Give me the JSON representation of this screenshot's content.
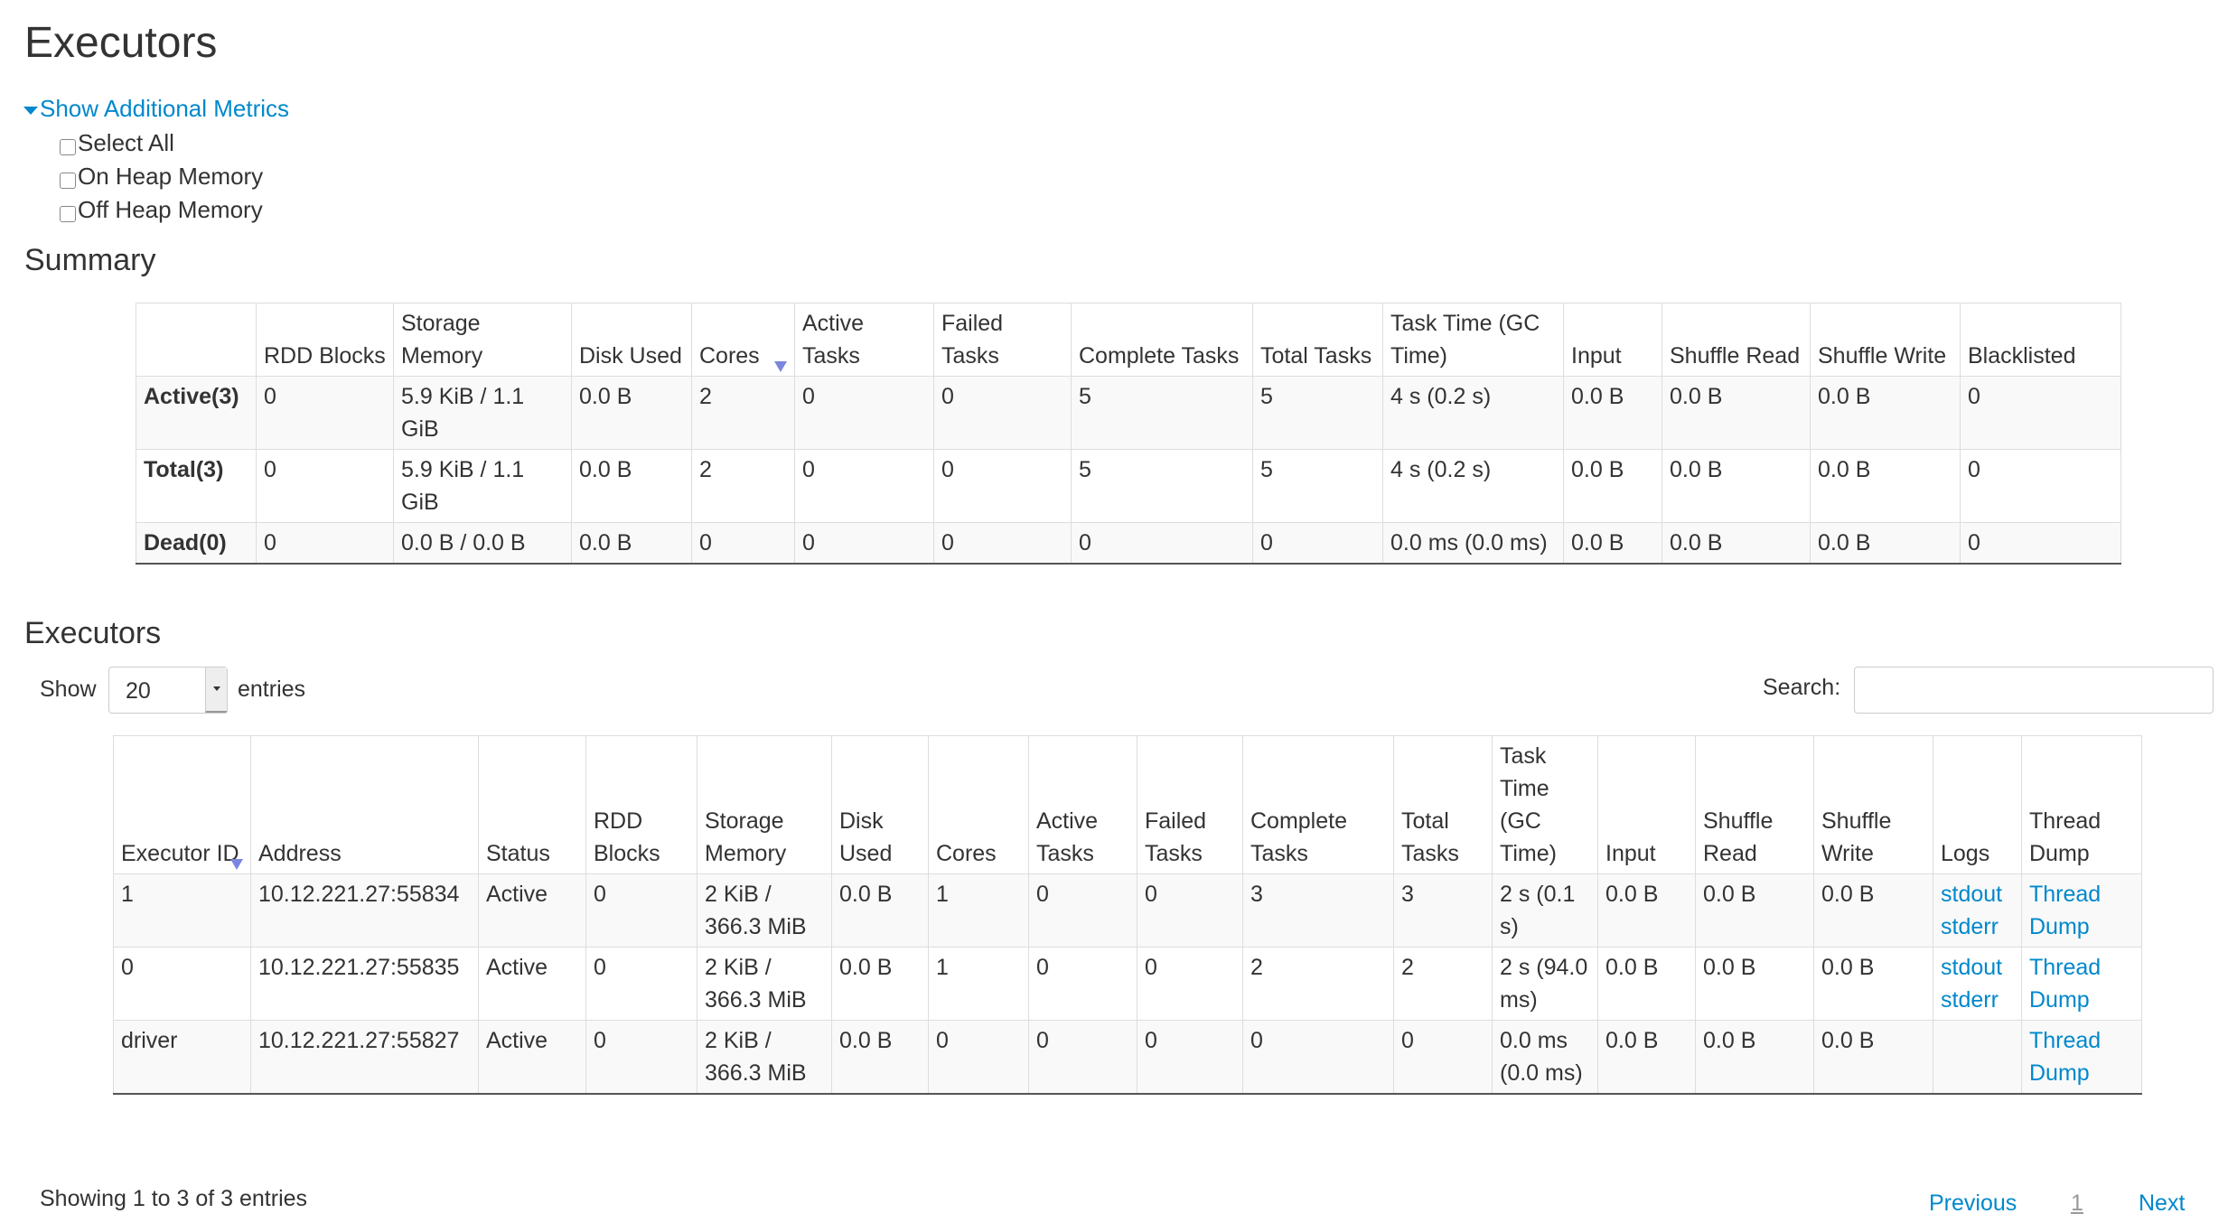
{
  "page_title": "Executors",
  "metrics": {
    "toggle_label": "Show Additional Metrics",
    "options": [
      {
        "label": "Select All",
        "checked": false
      },
      {
        "label": "On Heap Memory",
        "checked": false
      },
      {
        "label": "Off Heap Memory",
        "checked": false
      }
    ]
  },
  "summary": {
    "heading": "Summary",
    "sorted_column": "Cores",
    "headers": [
      "",
      "RDD Blocks",
      "Storage Memory",
      "Disk Used",
      "Cores",
      "Active Tasks",
      "Failed Tasks",
      "Complete Tasks",
      "Total Tasks",
      "Task Time (GC Time)",
      "Input",
      "Shuffle Read",
      "Shuffle Write",
      "Blacklisted"
    ],
    "rows": [
      [
        "Active(3)",
        "0",
        "5.9 KiB / 1.1 GiB",
        "0.0 B",
        "2",
        "0",
        "0",
        "5",
        "5",
        "4 s (0.2 s)",
        "0.0 B",
        "0.0 B",
        "0.0 B",
        "0"
      ],
      [
        "Total(3)",
        "0",
        "5.9 KiB / 1.1 GiB",
        "0.0 B",
        "2",
        "0",
        "0",
        "5",
        "5",
        "4 s (0.2 s)",
        "0.0 B",
        "0.0 B",
        "0.0 B",
        "0"
      ],
      [
        "Dead(0)",
        "0",
        "0.0 B / 0.0 B",
        "0.0 B",
        "0",
        "0",
        "0",
        "0",
        "0",
        "0.0 ms (0.0 ms)",
        "0.0 B",
        "0.0 B",
        "0.0 B",
        "0"
      ]
    ]
  },
  "executors": {
    "heading": "Executors",
    "show_label": "Show",
    "page_size": "20",
    "entries_label": "entries",
    "search_label": "Search:",
    "search_value": "",
    "sorted_column": "Executor ID",
    "headers": [
      "Executor ID",
      "Address",
      "Status",
      "RDD Blocks",
      "Storage Memory",
      "Disk Used",
      "Cores",
      "Active Tasks",
      "Failed Tasks",
      "Complete Tasks",
      "Total Tasks",
      "Task Time (GC Time)",
      "Input",
      "Shuffle Read",
      "Shuffle Write",
      "Logs",
      "Thread Dump"
    ],
    "rows": [
      {
        "cells": [
          "1",
          "10.12.221.27:55834",
          "Active",
          "0",
          "2 KiB / 366.3 MiB",
          "0.0 B",
          "1",
          "0",
          "0",
          "3",
          "3",
          "2 s (0.1 s)",
          "0.0 B",
          "0.0 B",
          "0.0 B"
        ],
        "logs": [
          "stdout",
          "stderr"
        ],
        "thread_dump": "Thread Dump"
      },
      {
        "cells": [
          "0",
          "10.12.221.27:55835",
          "Active",
          "0",
          "2 KiB / 366.3 MiB",
          "0.0 B",
          "1",
          "0",
          "0",
          "2",
          "2",
          "2 s (94.0 ms)",
          "0.0 B",
          "0.0 B",
          "0.0 B"
        ],
        "logs": [
          "stdout",
          "stderr"
        ],
        "thread_dump": "Thread Dump"
      },
      {
        "cells": [
          "driver",
          "10.12.221.27:55827",
          "Active",
          "0",
          "2 KiB / 366.3 MiB",
          "0.0 B",
          "0",
          "0",
          "0",
          "0",
          "0",
          "0.0 ms (0.0 ms)",
          "0.0 B",
          "0.0 B",
          "0.0 B"
        ],
        "logs": [],
        "thread_dump": "Thread Dump"
      }
    ],
    "info": "Showing 1 to 3 of 3 entries",
    "pagination": {
      "previous": "Previous",
      "current": "1",
      "next": "Next"
    }
  },
  "colors": {
    "link": "#0088cc",
    "text": "#333333",
    "stripe": "#f9f9f9",
    "sort_arrow": "#7c86e0"
  }
}
